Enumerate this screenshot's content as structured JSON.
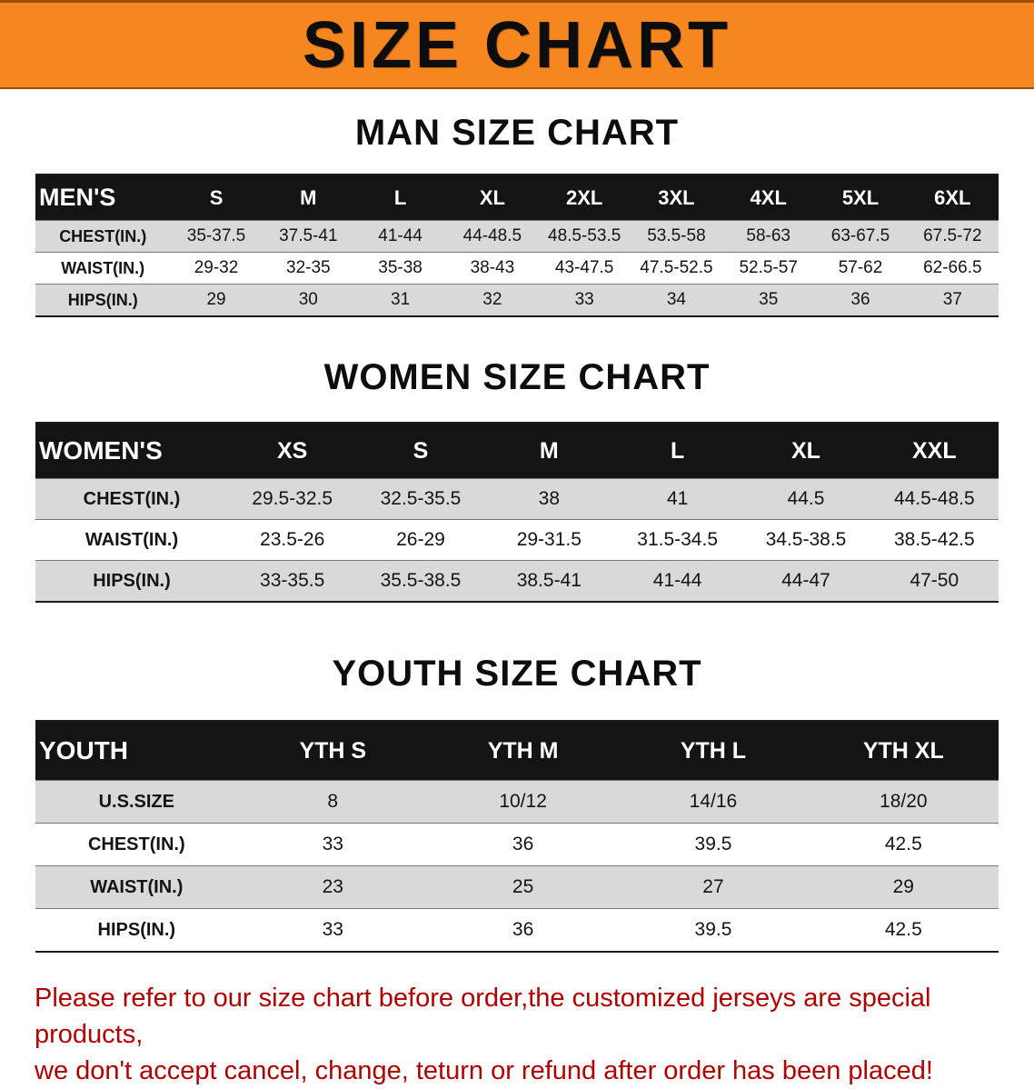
{
  "banner": {
    "title": "SIZE CHART"
  },
  "colors": {
    "banner_bg": "#f6861f",
    "banner_text": "#0d0d0d",
    "table_header_bg": "#141414",
    "table_header_text": "#ffffff",
    "row_alt_bg": "#d9d9d9",
    "row_bg": "#ffffff",
    "note_red": "#b40000"
  },
  "sections": [
    {
      "id": "men",
      "heading": "MAN SIZE CHART",
      "table": {
        "header": [
          "MEN'S",
          "S",
          "M",
          "L",
          "XL",
          "2XL",
          "3XL",
          "4XL",
          "5XL",
          "6XL"
        ],
        "rows": [
          [
            "CHEST(IN.)",
            "35-37.5",
            "37.5-41",
            "41-44",
            "44-48.5",
            "48.5-53.5",
            "53.5-58",
            "58-63",
            "63-67.5",
            "67.5-72"
          ],
          [
            "WAIST(IN.)",
            "29-32",
            "32-35",
            "35-38",
            "38-43",
            "43-47.5",
            "47.5-52.5",
            "52.5-57",
            "57-62",
            "62-66.5"
          ],
          [
            "HIPS(IN.)",
            "29",
            "30",
            "31",
            "32",
            "33",
            "34",
            "35",
            "36",
            "37"
          ]
        ]
      }
    },
    {
      "id": "women",
      "heading": "WOMEN SIZE CHART",
      "table": {
        "header": [
          "WOMEN'S",
          "XS",
          "S",
          "M",
          "L",
          "XL",
          "XXL"
        ],
        "rows": [
          [
            "CHEST(IN.)",
            "29.5-32.5",
            "32.5-35.5",
            "38",
            "41",
            "44.5",
            "44.5-48.5"
          ],
          [
            "WAIST(IN.)",
            "23.5-26",
            "26-29",
            "29-31.5",
            "31.5-34.5",
            "34.5-38.5",
            "38.5-42.5"
          ],
          [
            "HIPS(IN.)",
            "33-35.5",
            "35.5-38.5",
            "38.5-41",
            "41-44",
            "44-47",
            "47-50"
          ]
        ]
      }
    },
    {
      "id": "youth",
      "heading": "YOUTH SIZE CHART",
      "table": {
        "header": [
          "YOUTH",
          "YTH S",
          "YTH M",
          "YTH L",
          "YTH XL"
        ],
        "rows": [
          [
            "U.S.SIZE",
            "8",
            "10/12",
            "14/16",
            "18/20"
          ],
          [
            "CHEST(IN.)",
            "33",
            "36",
            "39.5",
            "42.5"
          ],
          [
            "WAIST(IN.)",
            "23",
            "25",
            "27",
            "29"
          ],
          [
            "HIPS(IN.)",
            "33",
            "36",
            "39.5",
            "42.5"
          ]
        ]
      }
    }
  ],
  "note": {
    "line1": "Please refer to our size chart before order,the customized jerseys are special products,",
    "line2": "we don't accept cancel, change, teturn or refund after order has been placed!"
  }
}
